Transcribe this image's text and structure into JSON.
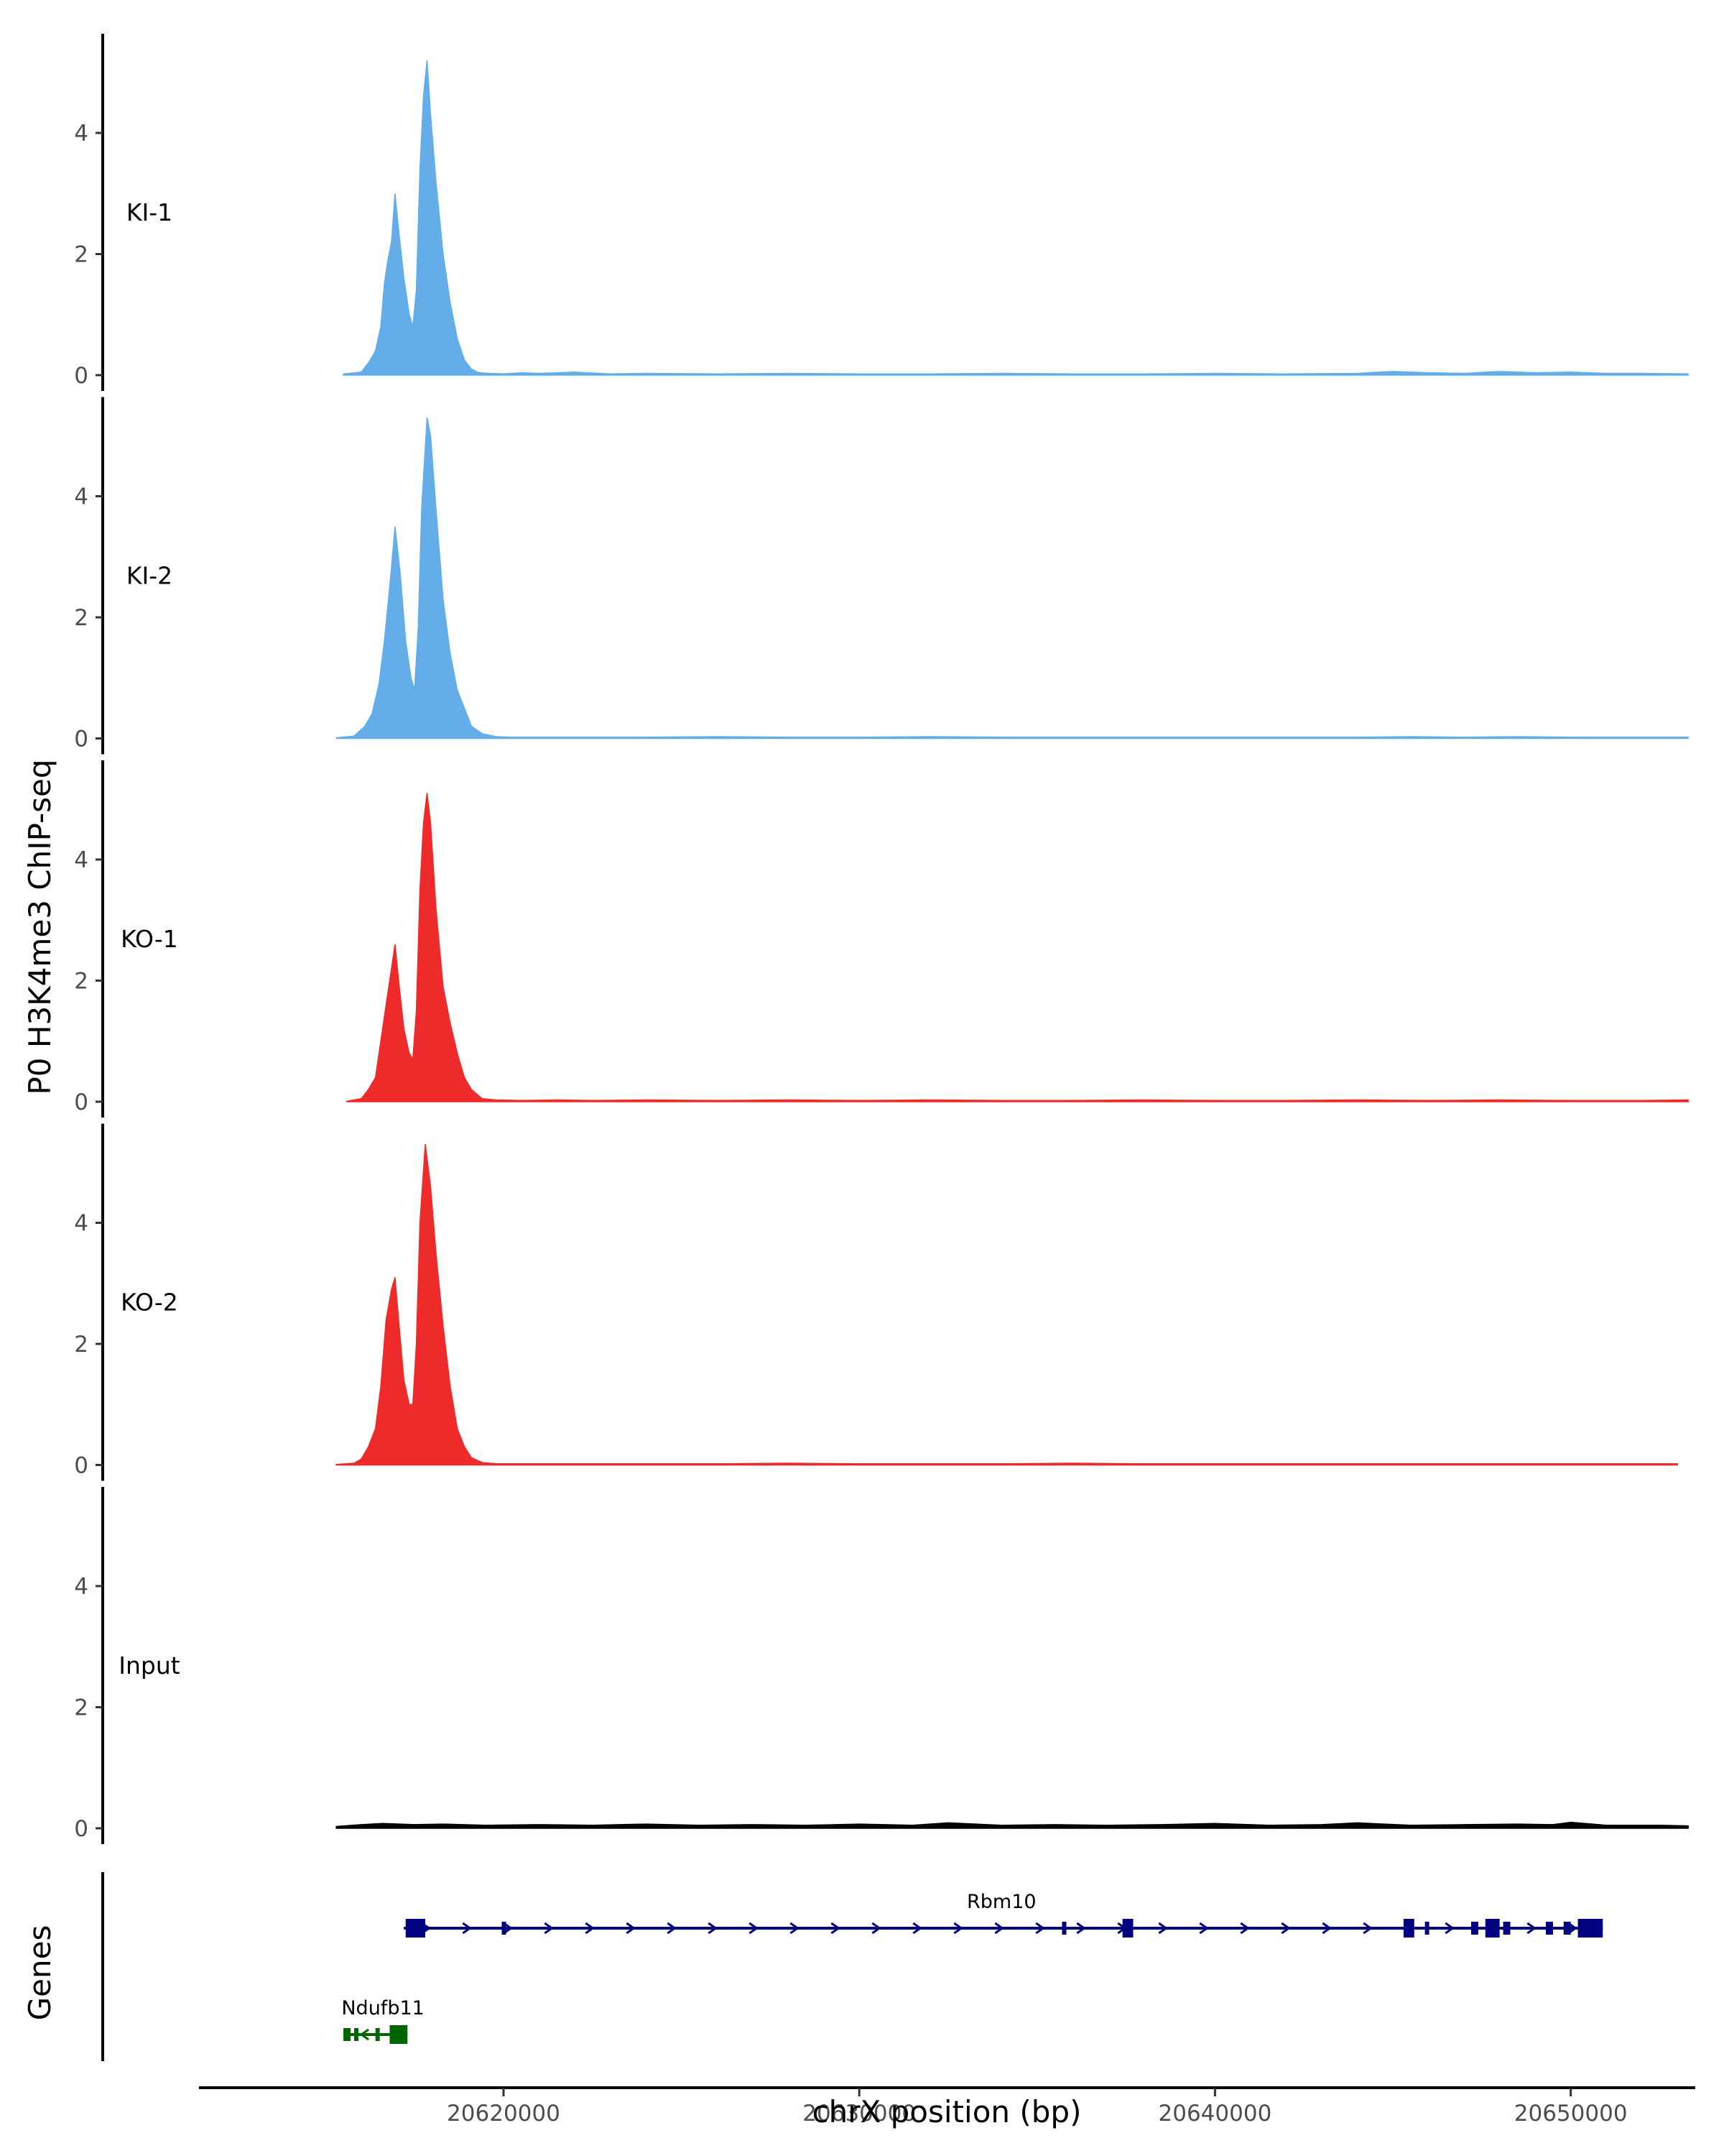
{
  "chart_data": {
    "type": "area",
    "title": "",
    "ylabel": "P0 H3K4me3 ChIP-seq",
    "xlabel": "chrX position (bp)",
    "xlim": [
      20611500,
      20653500
    ],
    "ylim": [
      0,
      5.4
    ],
    "y_ticks": [
      0,
      2,
      4
    ],
    "x_ticks": [
      20620000,
      20630000,
      20640000,
      20650000
    ],
    "genes_label": "Genes",
    "colors": {
      "KI": "#63ade9",
      "KO": "#ee2a2a",
      "Input": "#000000",
      "Rbm10": "#000080",
      "Ndufb11": "#006400"
    },
    "tracks": [
      {
        "name": "KI-1",
        "color": "#63ade9",
        "points": [
          [
            20615500,
            0.02
          ],
          [
            20616000,
            0.05
          ],
          [
            20616200,
            0.2
          ],
          [
            20616400,
            0.4
          ],
          [
            20616550,
            0.8
          ],
          [
            20616650,
            1.5
          ],
          [
            20616750,
            1.9
          ],
          [
            20616850,
            2.2
          ],
          [
            20616950,
            3.0
          ],
          [
            20617050,
            2.4
          ],
          [
            20617200,
            1.6
          ],
          [
            20617350,
            1.0
          ],
          [
            20617450,
            0.8
          ],
          [
            20617550,
            1.4
          ],
          [
            20617650,
            3.4
          ],
          [
            20617750,
            4.6
          ],
          [
            20617850,
            5.2
          ],
          [
            20617950,
            4.3
          ],
          [
            20618100,
            3.2
          ],
          [
            20618300,
            2.0
          ],
          [
            20618500,
            1.2
          ],
          [
            20618700,
            0.6
          ],
          [
            20618900,
            0.25
          ],
          [
            20619100,
            0.1
          ],
          [
            20619300,
            0.04
          ],
          [
            20619600,
            0.03
          ],
          [
            20620000,
            0.02
          ],
          [
            20620500,
            0.04
          ],
          [
            20621000,
            0.03
          ],
          [
            20622000,
            0.05
          ],
          [
            20623000,
            0.02
          ],
          [
            20624000,
            0.03
          ],
          [
            20626000,
            0.02
          ],
          [
            20628000,
            0.03
          ],
          [
            20630000,
            0.02
          ],
          [
            20632000,
            0.02
          ],
          [
            20634000,
            0.03
          ],
          [
            20636000,
            0.02
          ],
          [
            20638000,
            0.02
          ],
          [
            20640000,
            0.03
          ],
          [
            20642000,
            0.02
          ],
          [
            20644000,
            0.03
          ],
          [
            20645000,
            0.06
          ],
          [
            20646000,
            0.04
          ],
          [
            20647000,
            0.03
          ],
          [
            20648000,
            0.06
          ],
          [
            20649000,
            0.04
          ],
          [
            20650000,
            0.05
          ],
          [
            20651000,
            0.03
          ],
          [
            20652000,
            0.03
          ],
          [
            20653300,
            0.02
          ]
        ]
      },
      {
        "name": "KI-2",
        "color": "#63ade9",
        "points": [
          [
            20615300,
            0.01
          ],
          [
            20615800,
            0.04
          ],
          [
            20616100,
            0.2
          ],
          [
            20616300,
            0.4
          ],
          [
            20616500,
            0.9
          ],
          [
            20616650,
            1.6
          ],
          [
            20616800,
            2.5
          ],
          [
            20616950,
            3.5
          ],
          [
            20617100,
            2.7
          ],
          [
            20617250,
            1.6
          ],
          [
            20617400,
            1.0
          ],
          [
            20617500,
            0.8
          ],
          [
            20617600,
            1.8
          ],
          [
            20617700,
            3.8
          ],
          [
            20617850,
            5.3
          ],
          [
            20617950,
            5.0
          ],
          [
            20618100,
            3.8
          ],
          [
            20618300,
            2.3
          ],
          [
            20618500,
            1.4
          ],
          [
            20618700,
            0.8
          ],
          [
            20618900,
            0.5
          ],
          [
            20619100,
            0.2
          ],
          [
            20619400,
            0.08
          ],
          [
            20619800,
            0.03
          ],
          [
            20620200,
            0.02
          ],
          [
            20621000,
            0.02
          ],
          [
            20622000,
            0.02
          ],
          [
            20624000,
            0.02
          ],
          [
            20626000,
            0.03
          ],
          [
            20628000,
            0.02
          ],
          [
            20630000,
            0.02
          ],
          [
            20632000,
            0.03
          ],
          [
            20634000,
            0.02
          ],
          [
            20636000,
            0.02
          ],
          [
            20638000,
            0.02
          ],
          [
            20640000,
            0.02
          ],
          [
            20642000,
            0.02
          ],
          [
            20644000,
            0.02
          ],
          [
            20645500,
            0.03
          ],
          [
            20647000,
            0.02
          ],
          [
            20648500,
            0.03
          ],
          [
            20650000,
            0.02
          ],
          [
            20651500,
            0.02
          ],
          [
            20653300,
            0.02
          ]
        ]
      },
      {
        "name": "KO-1",
        "color": "#ee2a2a",
        "points": [
          [
            20615600,
            0.01
          ],
          [
            20616000,
            0.05
          ],
          [
            20616200,
            0.2
          ],
          [
            20616400,
            0.4
          ],
          [
            20616550,
            1.0
          ],
          [
            20616700,
            1.6
          ],
          [
            20616850,
            2.2
          ],
          [
            20616950,
            2.6
          ],
          [
            20617050,
            2.0
          ],
          [
            20617200,
            1.2
          ],
          [
            20617350,
            0.8
          ],
          [
            20617450,
            0.7
          ],
          [
            20617550,
            1.5
          ],
          [
            20617650,
            3.5
          ],
          [
            20617750,
            4.6
          ],
          [
            20617850,
            5.1
          ],
          [
            20617950,
            4.6
          ],
          [
            20618100,
            3.2
          ],
          [
            20618300,
            1.9
          ],
          [
            20618500,
            1.3
          ],
          [
            20618700,
            0.8
          ],
          [
            20618900,
            0.4
          ],
          [
            20619100,
            0.2
          ],
          [
            20619400,
            0.05
          ],
          [
            20619800,
            0.03
          ],
          [
            20620500,
            0.02
          ],
          [
            20621500,
            0.03
          ],
          [
            20622500,
            0.02
          ],
          [
            20624000,
            0.03
          ],
          [
            20626000,
            0.02
          ],
          [
            20628000,
            0.03
          ],
          [
            20630000,
            0.02
          ],
          [
            20632000,
            0.03
          ],
          [
            20634000,
            0.02
          ],
          [
            20636000,
            0.02
          ],
          [
            20638000,
            0.03
          ],
          [
            20640000,
            0.02
          ],
          [
            20642000,
            0.02
          ],
          [
            20644000,
            0.03
          ],
          [
            20646000,
            0.02
          ],
          [
            20648000,
            0.03
          ],
          [
            20650000,
            0.02
          ],
          [
            20652000,
            0.02
          ],
          [
            20653300,
            0.03
          ]
        ]
      },
      {
        "name": "KO-2",
        "color": "#ee2a2a",
        "points": [
          [
            20615300,
            0.01
          ],
          [
            20615800,
            0.03
          ],
          [
            20616000,
            0.1
          ],
          [
            20616200,
            0.3
          ],
          [
            20616400,
            0.6
          ],
          [
            20616550,
            1.3
          ],
          [
            20616700,
            2.4
          ],
          [
            20616850,
            2.9
          ],
          [
            20616950,
            3.1
          ],
          [
            20617050,
            2.4
          ],
          [
            20617200,
            1.4
          ],
          [
            20617350,
            1.0
          ],
          [
            20617450,
            1.0
          ],
          [
            20617550,
            2.0
          ],
          [
            20617650,
            4.0
          ],
          [
            20617800,
            5.3
          ],
          [
            20617950,
            4.6
          ],
          [
            20618100,
            3.5
          ],
          [
            20618300,
            2.3
          ],
          [
            20618500,
            1.3
          ],
          [
            20618700,
            0.6
          ],
          [
            20618900,
            0.3
          ],
          [
            20619100,
            0.12
          ],
          [
            20619400,
            0.04
          ],
          [
            20619800,
            0.02
          ],
          [
            20620500,
            0.02
          ],
          [
            20622000,
            0.02
          ],
          [
            20624000,
            0.02
          ],
          [
            20626000,
            0.02
          ],
          [
            20628000,
            0.03
          ],
          [
            20630000,
            0.02
          ],
          [
            20632000,
            0.02
          ],
          [
            20634000,
            0.02
          ],
          [
            20636000,
            0.03
          ],
          [
            20638000,
            0.02
          ],
          [
            20640000,
            0.02
          ],
          [
            20642000,
            0.02
          ],
          [
            20644000,
            0.02
          ],
          [
            20646000,
            0.02
          ],
          [
            20648000,
            0.02
          ],
          [
            20650000,
            0.02
          ],
          [
            20652000,
            0.02
          ],
          [
            20653000,
            0.02
          ]
        ]
      },
      {
        "name": "Input",
        "color": "#000000",
        "points": [
          [
            20615300,
            0.03
          ],
          [
            20616000,
            0.06
          ],
          [
            20616600,
            0.08
          ],
          [
            20617500,
            0.06
          ],
          [
            20618300,
            0.07
          ],
          [
            20619500,
            0.05
          ],
          [
            20621000,
            0.06
          ],
          [
            20622500,
            0.05
          ],
          [
            20624000,
            0.07
          ],
          [
            20625500,
            0.05
          ],
          [
            20627000,
            0.06
          ],
          [
            20628500,
            0.05
          ],
          [
            20630000,
            0.07
          ],
          [
            20631500,
            0.05
          ],
          [
            20632500,
            0.09
          ],
          [
            20634000,
            0.05
          ],
          [
            20635500,
            0.06
          ],
          [
            20637000,
            0.05
          ],
          [
            20638500,
            0.06
          ],
          [
            20640000,
            0.08
          ],
          [
            20641500,
            0.05
          ],
          [
            20643000,
            0.06
          ],
          [
            20644000,
            0.09
          ],
          [
            20645500,
            0.05
          ],
          [
            20647000,
            0.06
          ],
          [
            20648500,
            0.07
          ],
          [
            20649500,
            0.06
          ],
          [
            20650000,
            0.1
          ],
          [
            20651000,
            0.05
          ],
          [
            20652500,
            0.05
          ],
          [
            20653300,
            0.04
          ]
        ]
      }
    ],
    "genes": [
      {
        "name": "Rbm10",
        "strand": "+",
        "start": 20617200,
        "end": 20650900,
        "label_pos": 20634000,
        "exons": [
          [
            20617250,
            20617800
          ],
          [
            20619950,
            20620050
          ],
          [
            20635700,
            20635800
          ],
          [
            20637400,
            20637700
          ],
          [
            20645300,
            20645600
          ],
          [
            20645900,
            20646000
          ],
          [
            20647200,
            20647400
          ],
          [
            20647600,
            20648000
          ],
          [
            20648100,
            20648300
          ],
          [
            20649300,
            20649500
          ],
          [
            20649800,
            20650000
          ],
          [
            20650200,
            20650900
          ]
        ]
      },
      {
        "name": "Ndufb11",
        "strand": "-",
        "start": 20615500,
        "end": 20617300,
        "label_pos": 20615500,
        "exons": [
          [
            20615500,
            20615700
          ],
          [
            20615800,
            20615900
          ],
          [
            20616400,
            20616500
          ],
          [
            20616800,
            20617300
          ]
        ]
      }
    ]
  }
}
